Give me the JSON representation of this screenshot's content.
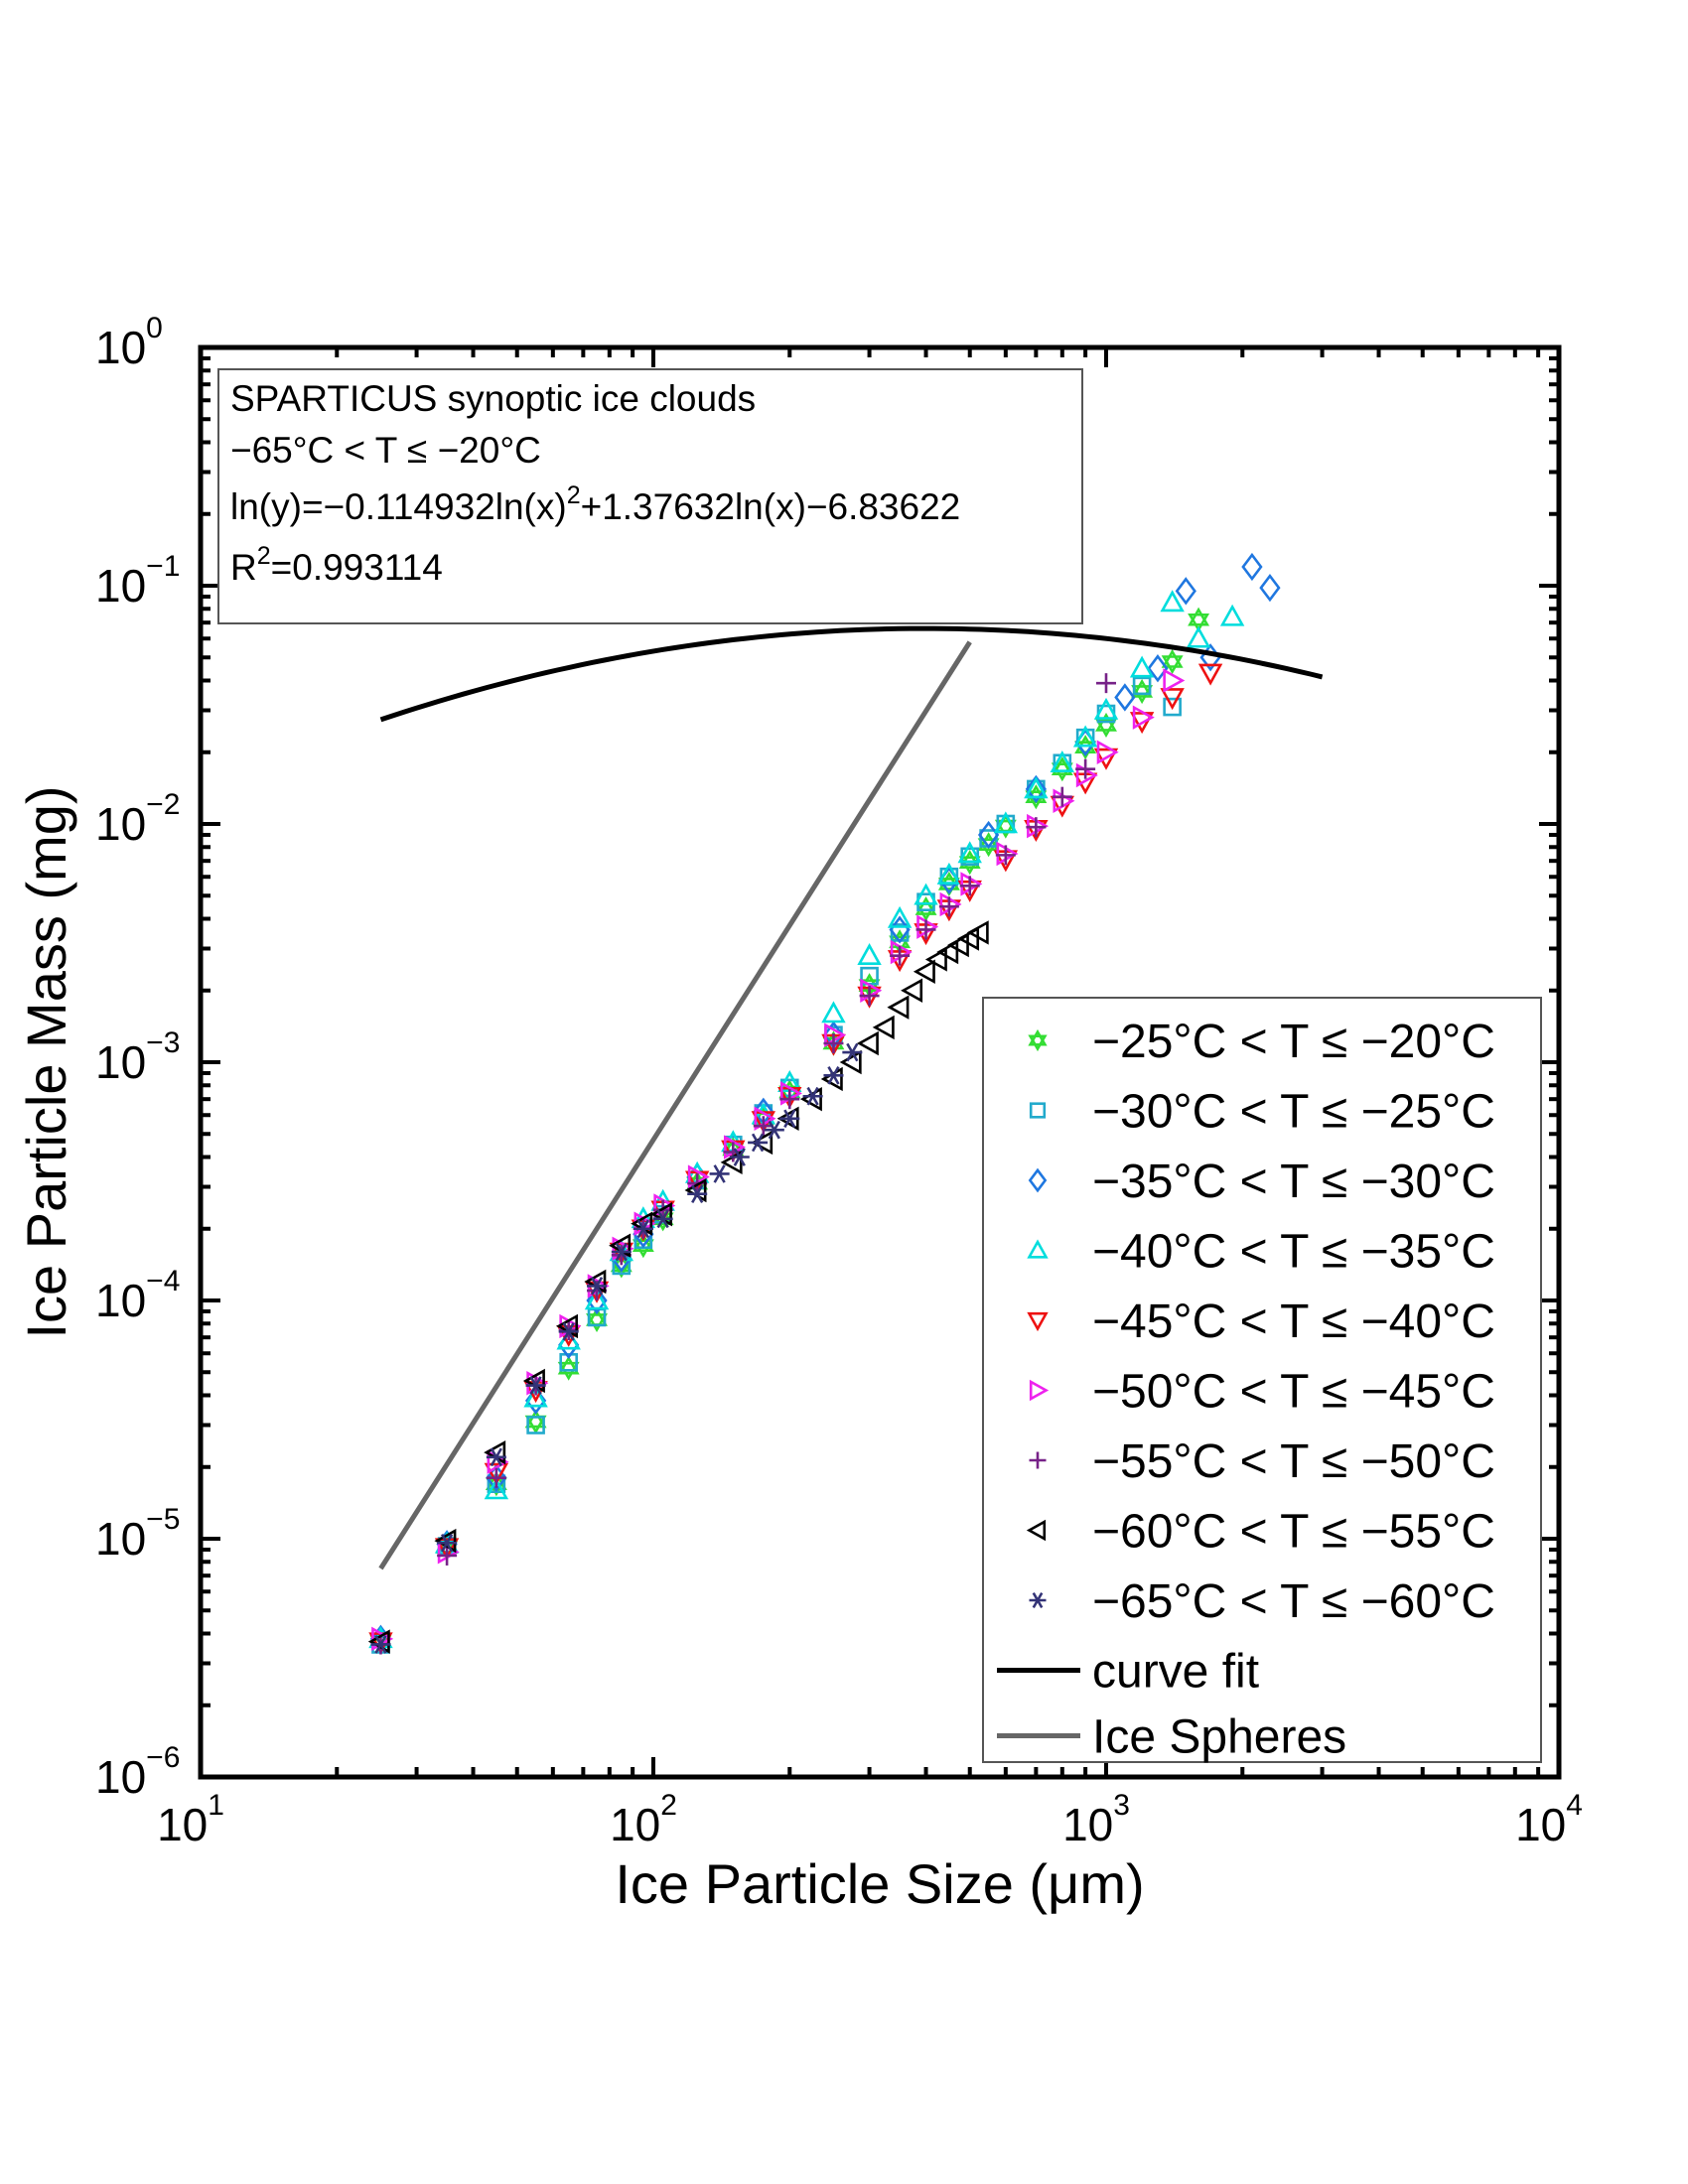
{
  "chart_data": {
    "type": "scatter",
    "xlabel": "Ice Particle Size (μm)",
    "ylabel": "Ice Particle Mass (mg)",
    "xscale": "log",
    "yscale": "log",
    "xlim": [
      10,
      10000
    ],
    "ylim": [
      1e-06,
      1
    ],
    "grid": false,
    "legend_position": "bottom-right",
    "x_ticks": [
      {
        "base": "10",
        "exp": "1",
        "value": 10
      },
      {
        "base": "10",
        "exp": "2",
        "value": 100
      },
      {
        "base": "10",
        "exp": "3",
        "value": 1000
      },
      {
        "base": "10",
        "exp": "4",
        "value": 10000
      }
    ],
    "y_ticks": [
      {
        "base": "10",
        "exp": "0",
        "value": 1
      },
      {
        "base": "10",
        "exp": "−1",
        "value": 0.1
      },
      {
        "base": "10",
        "exp": "−2",
        "value": 0.01
      },
      {
        "base": "10",
        "exp": "−3",
        "value": 0.001
      },
      {
        "base": "10",
        "exp": "−4",
        "value": 0.0001
      },
      {
        "base": "10",
        "exp": "−5",
        "value": 1e-05
      },
      {
        "base": "10",
        "exp": "−6",
        "value": 1e-06
      }
    ],
    "annotation": {
      "line1": "SPARTICUS synoptic ice clouds",
      "line2": "−65°C < T ≤ −20°C",
      "line3_a": "ln(y)=−0.114932ln(x)",
      "line3_sup": "2",
      "line3_b": "+1.37632ln(x)−6.83622",
      "line4_a": "R",
      "line4_sup": "2",
      "line4_b": "=0.993114"
    },
    "fit": {
      "name": "curve fit",
      "color": "#000000",
      "a": -0.114932,
      "b": 1.37632,
      "c": -6.83622,
      "x_range": [
        25,
        3000
      ]
    },
    "reference": {
      "name": "Ice Spheres",
      "color": "#666666",
      "points": [
        [
          25,
          7.5e-06
        ],
        [
          500,
          0.058
        ]
      ]
    },
    "series": [
      {
        "name": "−25°C < T ≤ −20°C",
        "marker": "hexagram",
        "color": "#33dd33",
        "x": [
          25,
          35,
          45,
          55,
          65,
          75,
          85,
          95,
          105,
          125,
          150,
          175,
          200,
          250,
          300,
          350,
          400,
          450,
          500,
          550,
          600,
          700,
          800,
          900,
          1000,
          1200,
          1400,
          1600
        ],
        "y": [
          3.7e-06,
          9.2e-06,
          1.7e-05,
          3.1e-05,
          5.2e-05,
          8.3e-05,
          0.00014,
          0.00017,
          0.00022,
          0.00031,
          0.00043,
          0.00058,
          0.00075,
          0.0012,
          0.0021,
          0.0032,
          0.0044,
          0.0056,
          0.0069,
          0.0082,
          0.0098,
          0.013,
          0.017,
          0.021,
          0.026,
          0.036,
          0.048,
          0.072
        ]
      },
      {
        "name": "−30°C < T ≤ −25°C",
        "marker": "square",
        "color": "#22aacc",
        "x": [
          25,
          35,
          45,
          55,
          65,
          75,
          85,
          95,
          105,
          125,
          150,
          175,
          200,
          250,
          300,
          350,
          400,
          450,
          500,
          550,
          600,
          700,
          800,
          900,
          1000,
          1200,
          1400
        ],
        "y": [
          3.6e-06,
          9.3e-06,
          1.7e-05,
          3e-05,
          5.5e-05,
          8.5e-05,
          0.00014,
          0.00018,
          0.00023,
          0.00032,
          0.00045,
          0.00061,
          0.00078,
          0.0013,
          0.0023,
          0.0035,
          0.0047,
          0.006,
          0.0073,
          0.0087,
          0.01,
          0.014,
          0.018,
          0.023,
          0.029,
          0.038,
          0.031
        ]
      },
      {
        "name": "−35°C < T ≤ −30°C",
        "marker": "diamond",
        "color": "#1f77e0",
        "x": [
          25,
          35,
          45,
          55,
          65,
          75,
          85,
          95,
          125,
          175,
          250,
          350,
          450,
          550,
          700,
          900,
          1100,
          1300,
          1500,
          1700,
          2100,
          2300
        ],
        "y": [
          3.8e-06,
          9.5e-06,
          1.8e-05,
          3.8e-05,
          6.5e-05,
          0.0001,
          0.00015,
          0.00019,
          0.00033,
          0.00062,
          0.0013,
          0.0036,
          0.0058,
          0.009,
          0.014,
          0.022,
          0.034,
          0.045,
          0.095,
          0.05,
          0.12,
          0.098
        ]
      },
      {
        "name": "−40°C < T ≤ −35°C",
        "marker": "triangle-up",
        "color": "#00dddd",
        "x": [
          25,
          35,
          45,
          55,
          65,
          75,
          85,
          95,
          105,
          125,
          150,
          175,
          200,
          250,
          300,
          350,
          400,
          450,
          500,
          600,
          700,
          800,
          900,
          1000,
          1200,
          1400,
          1600,
          1900
        ],
        "y": [
          3.8e-06,
          9.5e-06,
          1.6e-05,
          3.9e-05,
          6.8e-05,
          0.0001,
          0.00016,
          0.00022,
          0.00026,
          0.00034,
          0.00046,
          0.0006,
          0.00082,
          0.0016,
          0.0028,
          0.004,
          0.005,
          0.0061,
          0.0075,
          0.01,
          0.014,
          0.018,
          0.023,
          0.03,
          0.045,
          0.085,
          0.06,
          0.074
        ]
      },
      {
        "name": "−45°C < T ≤ −40°C",
        "marker": "triangle-down",
        "color": "#ee1111",
        "x": [
          25,
          35,
          45,
          55,
          65,
          75,
          85,
          95,
          105,
          125,
          150,
          175,
          200,
          250,
          300,
          350,
          400,
          450,
          500,
          600,
          700,
          800,
          900,
          1000,
          1200,
          1400,
          1700
        ],
        "y": [
          3.7e-06,
          9.2e-06,
          1.9e-05,
          4.2e-05,
          7.2e-05,
          0.00011,
          0.00016,
          0.0002,
          0.00024,
          0.00032,
          0.00043,
          0.00057,
          0.00072,
          0.0012,
          0.0019,
          0.0027,
          0.0035,
          0.0044,
          0.0053,
          0.0071,
          0.0095,
          0.012,
          0.015,
          0.019,
          0.027,
          0.034,
          0.043
        ]
      },
      {
        "name": "−50°C < T ≤ −45°C",
        "marker": "triangle-right",
        "color": "#ee22ee",
        "x": [
          25,
          35,
          45,
          55,
          65,
          75,
          85,
          95,
          105,
          125,
          150,
          175,
          200,
          250,
          300,
          350,
          400,
          450,
          500,
          600,
          700,
          800,
          900,
          1000,
          1200,
          1400
        ],
        "y": [
          3.8e-06,
          8.8e-06,
          2.1e-05,
          4.5e-05,
          7.8e-05,
          0.000115,
          0.000165,
          0.00021,
          0.00025,
          0.00033,
          0.00044,
          0.00058,
          0.00074,
          0.0013,
          0.002,
          0.0029,
          0.0037,
          0.0046,
          0.0056,
          0.0075,
          0.0098,
          0.0125,
          0.016,
          0.02,
          0.028,
          0.04
        ]
      },
      {
        "name": "−55°C < T ≤ −50°C",
        "marker": "plus",
        "color": "#772288",
        "x": [
          25,
          35,
          45,
          55,
          65,
          75,
          85,
          95,
          105,
          125,
          150,
          175,
          200,
          250,
          300,
          350,
          400,
          450,
          500,
          600,
          700,
          800,
          900,
          1000
        ],
        "y": [
          3.6e-06,
          8.5e-06,
          1.8e-05,
          4.4e-05,
          7.5e-05,
          0.00011,
          0.000155,
          0.0002,
          0.00024,
          0.00031,
          0.00042,
          0.00054,
          0.0007,
          0.0012,
          0.0019,
          0.0028,
          0.0036,
          0.0045,
          0.0055,
          0.0074,
          0.0097,
          0.013,
          0.017,
          0.039
        ]
      },
      {
        "name": "−60°C < T ≤ −55°C",
        "marker": "triangle-left",
        "color": "#000000",
        "x": [
          25,
          35,
          45,
          55,
          65,
          75,
          85,
          95,
          105,
          125,
          150,
          175,
          200,
          225,
          250,
          275,
          300,
          325,
          350,
          375,
          400,
          425,
          450,
          475,
          500,
          525
        ],
        "y": [
          3.7e-06,
          9.8e-06,
          2.3e-05,
          4.6e-05,
          7.8e-05,
          0.00012,
          0.00017,
          0.00021,
          0.00023,
          0.00029,
          0.00038,
          0.00046,
          0.00058,
          0.0007,
          0.00085,
          0.001,
          0.0012,
          0.0014,
          0.0017,
          0.002,
          0.0024,
          0.0027,
          0.0029,
          0.0031,
          0.0033,
          0.0035
        ]
      },
      {
        "name": "−65°C < T ≤ −60°C",
        "marker": "asterisk",
        "color": "#333377",
        "x": [
          25,
          35,
          45,
          55,
          65,
          75,
          85,
          95,
          105,
          125,
          140,
          155,
          170,
          185,
          200,
          225,
          250,
          275
        ],
        "y": [
          3.6e-06,
          9.6e-06,
          2.2e-05,
          4.4e-05,
          7.4e-05,
          0.000115,
          0.00016,
          0.0002,
          0.00022,
          0.00028,
          0.00034,
          0.0004,
          0.00046,
          0.00052,
          0.00058,
          0.00072,
          0.00088,
          0.0011
        ]
      }
    ]
  }
}
